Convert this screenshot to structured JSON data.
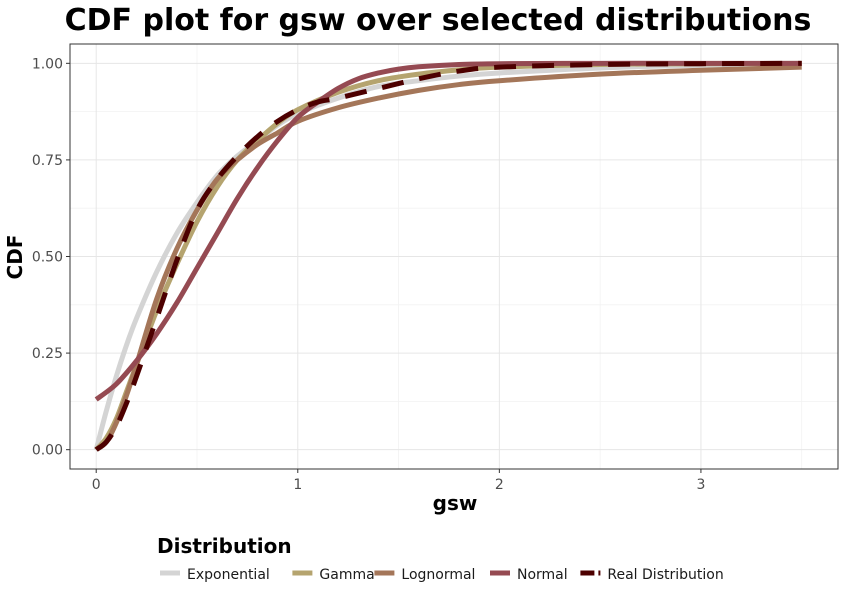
{
  "chart_data": {
    "type": "line",
    "title": "CDF plot for gsw over selected distributions",
    "xlabel": "gsw",
    "ylabel": "CDF",
    "xlim": [
      -0.13,
      3.68
    ],
    "ylim": [
      -0.05,
      1.05
    ],
    "x_ticks": [
      0,
      1,
      2,
      3
    ],
    "x_tick_labels": [
      "0",
      "1",
      "2",
      "3"
    ],
    "y_ticks": [
      0,
      0.25,
      0.5,
      0.75,
      1.0
    ],
    "y_tick_labels": [
      "0.00",
      "0.25",
      "0.50",
      "0.75",
      "1.00"
    ],
    "grid": true,
    "legend": {
      "title": "Distribution",
      "position": "bottom"
    },
    "series": [
      {
        "name": "Exponential",
        "color": "#d4d4d4",
        "dash": "solid",
        "x": [
          0,
          0.05,
          0.1,
          0.15,
          0.2,
          0.3,
          0.4,
          0.5,
          0.6,
          0.7,
          0.8,
          0.9,
          1.0,
          1.2,
          1.4,
          1.6,
          1.8,
          2.0,
          2.5,
          3.0,
          3.5
        ],
        "y": [
          0,
          0.1,
          0.19,
          0.27,
          0.34,
          0.46,
          0.56,
          0.64,
          0.71,
          0.76,
          0.8,
          0.84,
          0.87,
          0.91,
          0.94,
          0.955,
          0.967,
          0.975,
          0.988,
          0.995,
          0.998
        ]
      },
      {
        "name": "Gamma",
        "color": "#b5a46f",
        "dash": "solid",
        "x": [
          0,
          0.05,
          0.1,
          0.15,
          0.2,
          0.3,
          0.4,
          0.5,
          0.6,
          0.7,
          0.8,
          0.9,
          1.0,
          1.2,
          1.4,
          1.6,
          1.8,
          2.0,
          2.5,
          3.0,
          3.5
        ],
        "y": [
          0,
          0.03,
          0.08,
          0.15,
          0.22,
          0.36,
          0.48,
          0.59,
          0.68,
          0.75,
          0.8,
          0.845,
          0.88,
          0.925,
          0.955,
          0.972,
          0.983,
          0.99,
          0.997,
          0.999,
          1.0
        ]
      },
      {
        "name": "Lognormal",
        "color": "#a47659",
        "dash": "solid",
        "x": [
          0,
          0.05,
          0.1,
          0.15,
          0.2,
          0.3,
          0.4,
          0.5,
          0.6,
          0.7,
          0.8,
          0.9,
          1.0,
          1.2,
          1.4,
          1.6,
          1.8,
          2.0,
          2.5,
          3.0,
          3.5
        ],
        "y": [
          0,
          0.02,
          0.07,
          0.14,
          0.22,
          0.39,
          0.52,
          0.62,
          0.7,
          0.75,
          0.79,
          0.82,
          0.85,
          0.885,
          0.91,
          0.93,
          0.945,
          0.955,
          0.972,
          0.982,
          0.99
        ]
      },
      {
        "name": "Normal",
        "color": "#954a52",
        "dash": "solid",
        "x": [
          0,
          0.1,
          0.2,
          0.3,
          0.4,
          0.5,
          0.6,
          0.7,
          0.8,
          0.9,
          1.0,
          1.1,
          1.2,
          1.3,
          1.4,
          1.5,
          1.6,
          1.8,
          2.0,
          2.5,
          3.0,
          3.5
        ],
        "y": [
          0.13,
          0.17,
          0.23,
          0.3,
          0.38,
          0.47,
          0.56,
          0.65,
          0.73,
          0.8,
          0.86,
          0.9,
          0.935,
          0.96,
          0.975,
          0.985,
          0.991,
          0.997,
          0.999,
          1.0,
          1.0,
          1.0
        ]
      },
      {
        "name": "Real Distribution",
        "color": "#4d0000",
        "dash": "dashed",
        "x": [
          0,
          0.05,
          0.1,
          0.15,
          0.2,
          0.3,
          0.4,
          0.5,
          0.6,
          0.7,
          0.8,
          0.9,
          1.0,
          1.1,
          1.2,
          1.4,
          1.6,
          1.8,
          2.0,
          2.5,
          3.0,
          3.5
        ],
        "y": [
          0,
          0.02,
          0.06,
          0.12,
          0.19,
          0.34,
          0.49,
          0.62,
          0.7,
          0.76,
          0.81,
          0.85,
          0.88,
          0.9,
          0.91,
          0.935,
          0.96,
          0.98,
          0.99,
          0.997,
          0.999,
          1.0
        ]
      }
    ]
  }
}
